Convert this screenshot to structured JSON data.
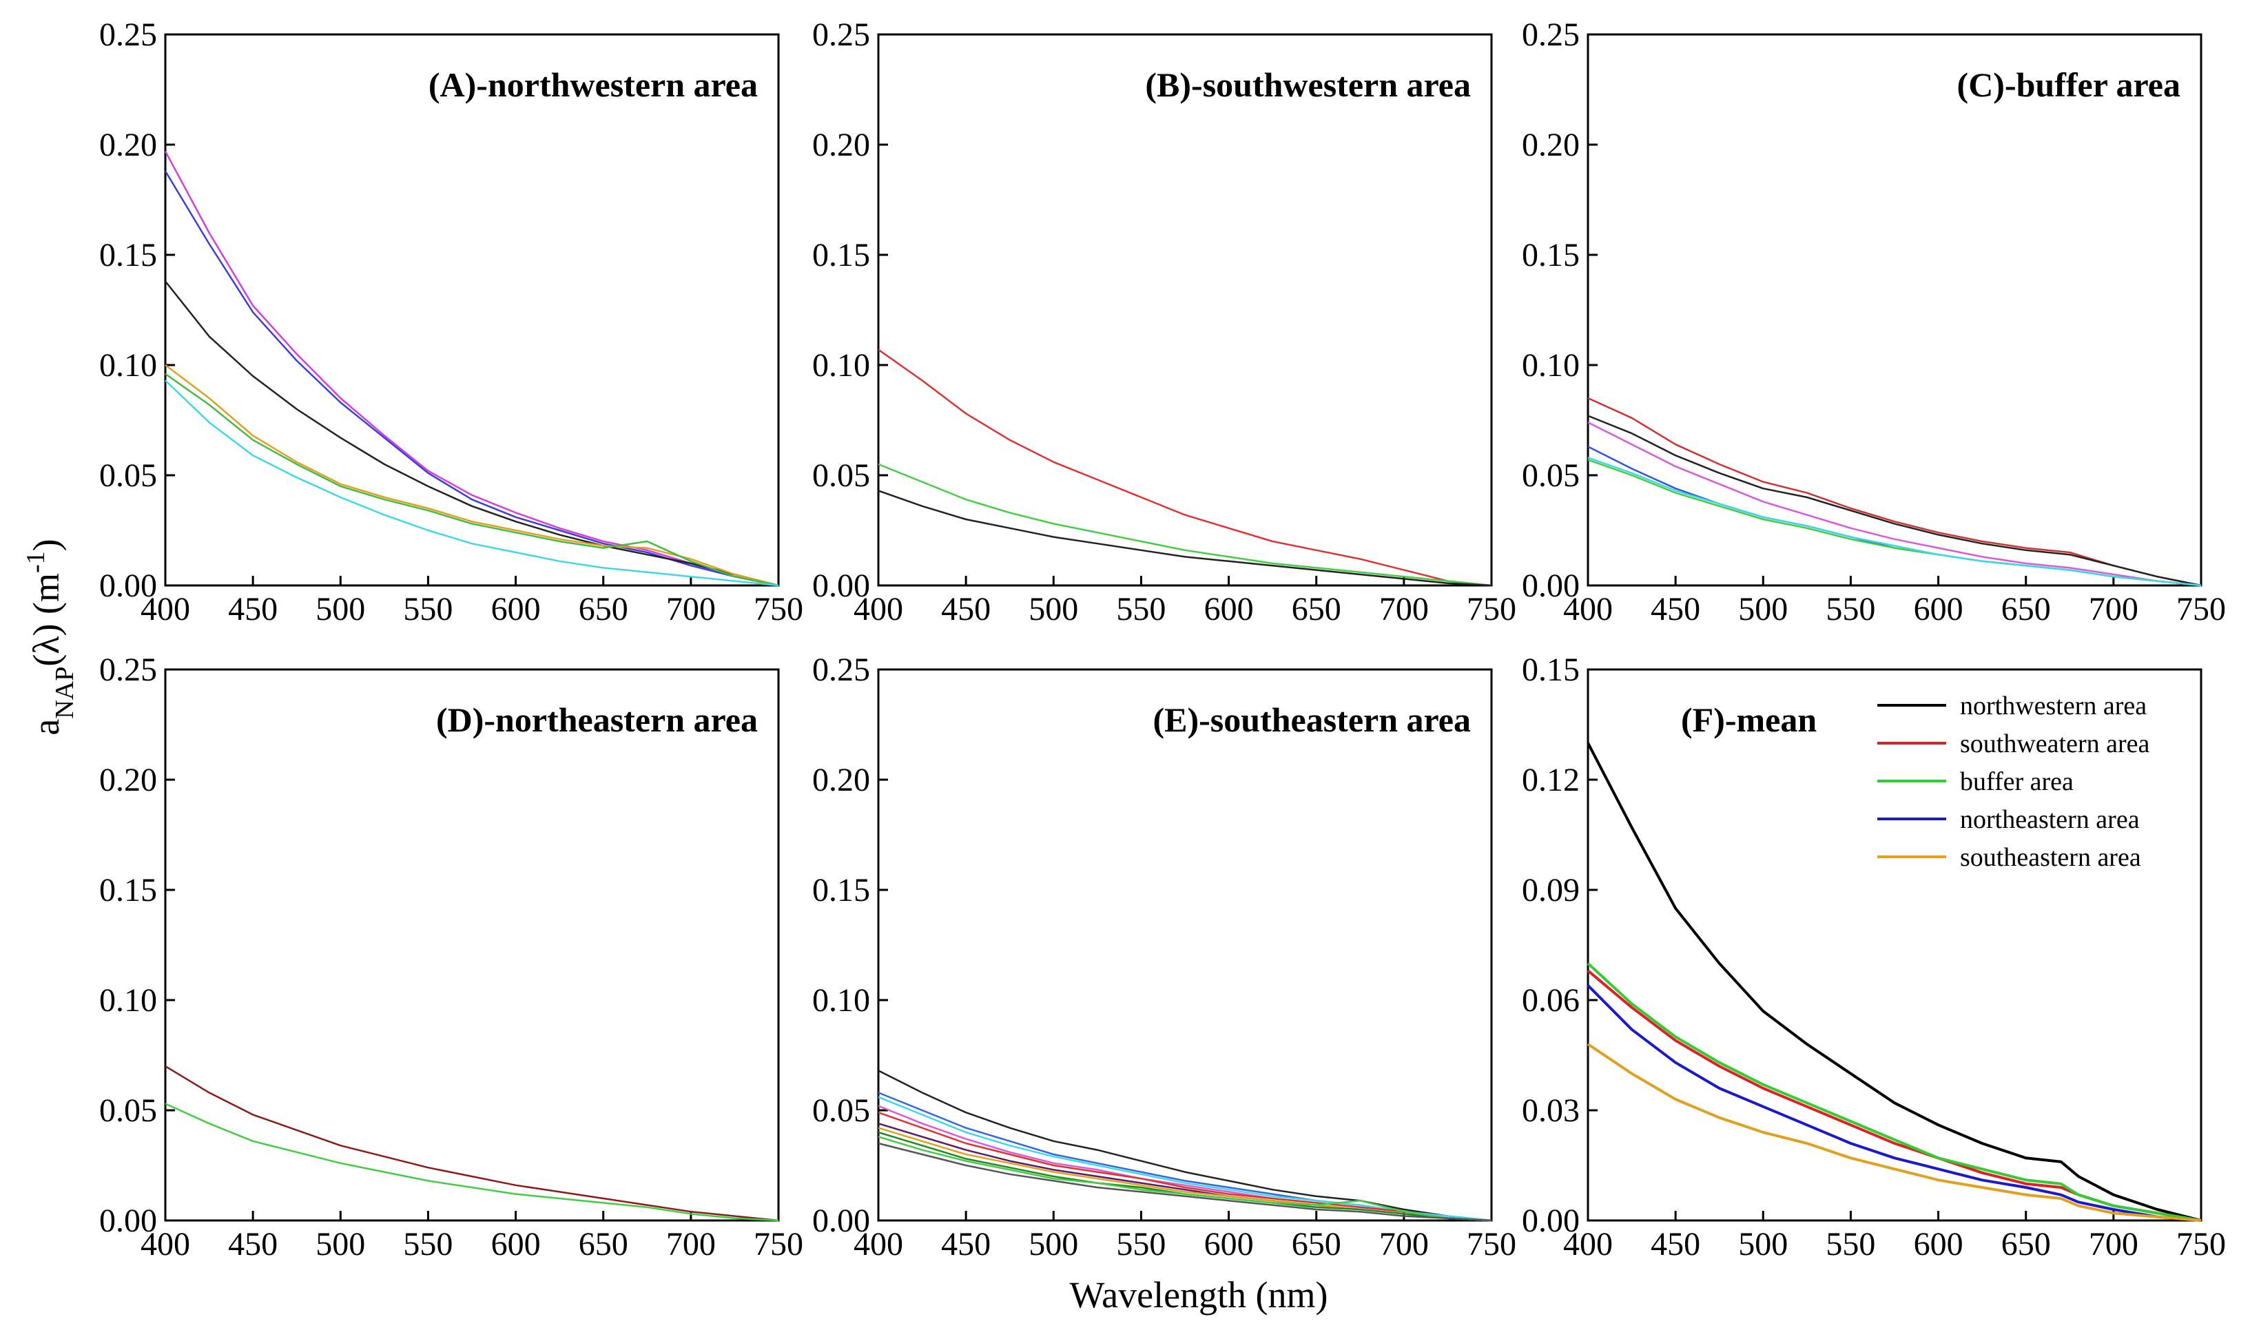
{
  "figure": {
    "xlabel": "Wavelength (nm)",
    "ylabel_main": "a",
    "ylabel_sub": "NAP",
    "ylabel_mid": "(λ) (m",
    "ylabel_sup": "-1",
    "ylabel_end": ")"
  },
  "chart_data": [
    {
      "type": "line",
      "title": "(A)-northwestern area",
      "xlim": [
        400,
        750
      ],
      "ylim": [
        0,
        0.25
      ],
      "xticks": [
        "400",
        "450",
        "500",
        "550",
        "600",
        "650",
        "700",
        "750"
      ],
      "yticks": [
        "0.00",
        "0.05",
        "0.10",
        "0.15",
        "0.20",
        "0.25"
      ],
      "x": [
        400,
        425,
        450,
        475,
        500,
        525,
        550,
        575,
        600,
        625,
        650,
        675,
        700,
        725,
        750
      ],
      "series": [
        {
          "name": "s1",
          "color": "#d63fd6",
          "values": [
            0.197,
            0.16,
            0.127,
            0.105,
            0.085,
            0.068,
            0.052,
            0.041,
            0.033,
            0.026,
            0.02,
            0.016,
            0.01,
            0.004,
            0.0
          ]
        },
        {
          "name": "s2",
          "color": "#3d3ddc",
          "values": [
            0.188,
            0.155,
            0.124,
            0.102,
            0.083,
            0.067,
            0.051,
            0.039,
            0.031,
            0.025,
            0.019,
            0.015,
            0.009,
            0.004,
            0.0
          ]
        },
        {
          "name": "s3",
          "color": "#222222",
          "values": [
            0.138,
            0.113,
            0.095,
            0.08,
            0.067,
            0.055,
            0.045,
            0.036,
            0.029,
            0.023,
            0.018,
            0.014,
            0.01,
            0.005,
            0.0
          ]
        },
        {
          "name": "s4",
          "color": "#e0a020",
          "values": [
            0.1,
            0.085,
            0.068,
            0.056,
            0.046,
            0.04,
            0.035,
            0.029,
            0.025,
            0.021,
            0.018,
            0.017,
            0.012,
            0.005,
            0.0
          ]
        },
        {
          "name": "s5",
          "color": "#44bb44",
          "values": [
            0.096,
            0.082,
            0.066,
            0.055,
            0.045,
            0.039,
            0.034,
            0.028,
            0.024,
            0.02,
            0.017,
            0.02,
            0.011,
            0.004,
            0.0
          ]
        },
        {
          "name": "s6",
          "color": "#40d8e8",
          "values": [
            0.093,
            0.074,
            0.059,
            0.049,
            0.04,
            0.032,
            0.025,
            0.019,
            0.015,
            0.011,
            0.008,
            0.006,
            0.004,
            0.002,
            0.0
          ]
        }
      ]
    },
    {
      "type": "line",
      "title": "(B)-southwestern area",
      "xlim": [
        400,
        750
      ],
      "ylim": [
        0,
        0.25
      ],
      "xticks": [
        "400",
        "450",
        "500",
        "550",
        "600",
        "650",
        "700",
        "750"
      ],
      "yticks": [
        "0.00",
        "0.05",
        "0.10",
        "0.15",
        "0.20",
        "0.25"
      ],
      "x": [
        400,
        425,
        450,
        475,
        500,
        525,
        550,
        575,
        600,
        625,
        650,
        675,
        700,
        725,
        750
      ],
      "series": [
        {
          "name": "s1",
          "color": "#dd3333",
          "values": [
            0.107,
            0.093,
            0.078,
            0.066,
            0.056,
            0.048,
            0.04,
            0.032,
            0.026,
            0.02,
            0.016,
            0.012,
            0.007,
            0.002,
            0.0
          ]
        },
        {
          "name": "s2",
          "color": "#44cc44",
          "values": [
            0.055,
            0.047,
            0.039,
            0.033,
            0.028,
            0.024,
            0.02,
            0.016,
            0.013,
            0.01,
            0.008,
            0.006,
            0.004,
            0.002,
            0.0
          ]
        },
        {
          "name": "s3",
          "color": "#222222",
          "values": [
            0.043,
            0.036,
            0.03,
            0.026,
            0.022,
            0.019,
            0.016,
            0.013,
            0.011,
            0.009,
            0.007,
            0.005,
            0.003,
            0.001,
            0.0
          ]
        }
      ]
    },
    {
      "type": "line",
      "title": "(C)-buffer area",
      "xlim": [
        400,
        750
      ],
      "ylim": [
        0,
        0.25
      ],
      "xticks": [
        "400",
        "450",
        "500",
        "550",
        "600",
        "650",
        "700",
        "750"
      ],
      "yticks": [
        "0.00",
        "0.05",
        "0.10",
        "0.15",
        "0.20",
        "0.25"
      ],
      "x": [
        400,
        425,
        450,
        475,
        500,
        525,
        550,
        575,
        600,
        625,
        650,
        675,
        700,
        725,
        750
      ],
      "series": [
        {
          "name": "s1",
          "color": "#cc3333",
          "values": [
            0.085,
            0.076,
            0.064,
            0.055,
            0.047,
            0.042,
            0.035,
            0.029,
            0.024,
            0.02,
            0.017,
            0.015,
            0.009,
            0.004,
            0.0
          ]
        },
        {
          "name": "s2",
          "color": "#222222",
          "values": [
            0.077,
            0.069,
            0.059,
            0.051,
            0.044,
            0.04,
            0.034,
            0.028,
            0.023,
            0.019,
            0.016,
            0.014,
            0.009,
            0.004,
            0.0
          ]
        },
        {
          "name": "s3",
          "color": "#d85ad8",
          "values": [
            0.074,
            0.064,
            0.054,
            0.046,
            0.038,
            0.032,
            0.026,
            0.021,
            0.017,
            0.013,
            0.01,
            0.008,
            0.005,
            0.002,
            0.0
          ]
        },
        {
          "name": "s4",
          "color": "#3355dd",
          "values": [
            0.063,
            0.053,
            0.044,
            0.037,
            0.031,
            0.027,
            0.022,
            0.017,
            0.014,
            0.011,
            0.009,
            0.007,
            0.004,
            0.002,
            0.0
          ]
        },
        {
          "name": "s5",
          "color": "#44cc44",
          "values": [
            0.057,
            0.05,
            0.042,
            0.036,
            0.03,
            0.026,
            0.021,
            0.017,
            0.014,
            0.011,
            0.009,
            0.007,
            0.004,
            0.002,
            0.0
          ]
        },
        {
          "name": "s6",
          "color": "#40d8e8",
          "values": [
            0.058,
            0.051,
            0.043,
            0.037,
            0.031,
            0.027,
            0.022,
            0.018,
            0.014,
            0.011,
            0.009,
            0.007,
            0.004,
            0.002,
            0.0
          ]
        }
      ]
    },
    {
      "type": "line",
      "title": "(D)-northeastern area",
      "xlim": [
        400,
        750
      ],
      "ylim": [
        0,
        0.25
      ],
      "xticks": [
        "400",
        "450",
        "500",
        "550",
        "600",
        "650",
        "700",
        "750"
      ],
      "yticks": [
        "0.00",
        "0.05",
        "0.10",
        "0.15",
        "0.20",
        "0.25"
      ],
      "x": [
        400,
        425,
        450,
        475,
        500,
        525,
        550,
        575,
        600,
        625,
        650,
        675,
        700,
        725,
        750
      ],
      "series": [
        {
          "name": "s1",
          "color": "#8b1a1a",
          "values": [
            0.07,
            0.058,
            0.048,
            0.041,
            0.034,
            0.029,
            0.024,
            0.02,
            0.016,
            0.013,
            0.01,
            0.007,
            0.004,
            0.002,
            0.0
          ]
        },
        {
          "name": "s2",
          "color": "#44cc44",
          "values": [
            0.053,
            0.044,
            0.036,
            0.031,
            0.026,
            0.022,
            0.018,
            0.015,
            0.012,
            0.01,
            0.008,
            0.006,
            0.003,
            0.001,
            0.0
          ]
        }
      ]
    },
    {
      "type": "line",
      "title": "(E)-southeastern area",
      "xlim": [
        400,
        750
      ],
      "ylim": [
        0,
        0.25
      ],
      "xticks": [
        "400",
        "450",
        "500",
        "550",
        "600",
        "650",
        "700",
        "750"
      ],
      "yticks": [
        "0.00",
        "0.05",
        "0.10",
        "0.15",
        "0.20",
        "0.25"
      ],
      "x": [
        400,
        425,
        450,
        475,
        500,
        525,
        550,
        575,
        600,
        625,
        650,
        675,
        700,
        725,
        750
      ],
      "series": [
        {
          "name": "s1",
          "color": "#222222",
          "values": [
            0.068,
            0.058,
            0.049,
            0.042,
            0.036,
            0.032,
            0.027,
            0.022,
            0.018,
            0.014,
            0.011,
            0.009,
            0.005,
            0.002,
            0.0
          ]
        },
        {
          "name": "s2",
          "color": "#3366dd",
          "values": [
            0.058,
            0.05,
            0.042,
            0.036,
            0.03,
            0.026,
            0.022,
            0.018,
            0.015,
            0.012,
            0.009,
            0.007,
            0.004,
            0.002,
            0.0
          ]
        },
        {
          "name": "s3",
          "color": "#40d8e8",
          "values": [
            0.056,
            0.048,
            0.04,
            0.034,
            0.029,
            0.025,
            0.021,
            0.017,
            0.014,
            0.011,
            0.009,
            0.007,
            0.004,
            0.002,
            0.0
          ]
        },
        {
          "name": "s4",
          "color": "#d85ad8",
          "values": [
            0.052,
            0.044,
            0.037,
            0.031,
            0.026,
            0.023,
            0.019,
            0.016,
            0.013,
            0.01,
            0.008,
            0.006,
            0.004,
            0.001,
            0.0
          ]
        },
        {
          "name": "s5",
          "color": "#dd3333",
          "values": [
            0.049,
            0.042,
            0.035,
            0.03,
            0.025,
            0.022,
            0.019,
            0.015,
            0.012,
            0.01,
            0.008,
            0.006,
            0.004,
            0.001,
            0.0
          ]
        },
        {
          "name": "s6",
          "color": "#5a1a6a",
          "values": [
            0.044,
            0.038,
            0.032,
            0.027,
            0.023,
            0.02,
            0.017,
            0.014,
            0.011,
            0.009,
            0.007,
            0.005,
            0.003,
            0.001,
            0.0
          ]
        },
        {
          "name": "s7",
          "color": "#e0a020",
          "values": [
            0.042,
            0.036,
            0.03,
            0.026,
            0.022,
            0.019,
            0.016,
            0.013,
            0.011,
            0.009,
            0.007,
            0.005,
            0.003,
            0.001,
            0.0
          ]
        },
        {
          "name": "s8",
          "color": "#228822",
          "values": [
            0.04,
            0.034,
            0.028,
            0.024,
            0.02,
            0.017,
            0.015,
            0.012,
            0.01,
            0.008,
            0.006,
            0.005,
            0.003,
            0.001,
            0.0
          ]
        },
        {
          "name": "s9",
          "color": "#44cc44",
          "values": [
            0.038,
            0.032,
            0.027,
            0.023,
            0.019,
            0.017,
            0.014,
            0.012,
            0.01,
            0.008,
            0.007,
            0.009,
            0.004,
            0.001,
            0.0
          ]
        },
        {
          "name": "s10",
          "color": "#555555",
          "values": [
            0.035,
            0.03,
            0.025,
            0.021,
            0.018,
            0.015,
            0.013,
            0.011,
            0.009,
            0.007,
            0.005,
            0.004,
            0.002,
            0.001,
            0.0
          ]
        }
      ]
    },
    {
      "type": "line",
      "title": "(F)-mean",
      "xlim": [
        400,
        750
      ],
      "ylim": [
        0,
        0.15
      ],
      "xticks": [
        "400",
        "450",
        "500",
        "550",
        "600",
        "650",
        "700",
        "750"
      ],
      "yticks": [
        "0.00",
        "0.03",
        "0.06",
        "0.09",
        "0.12",
        "0.15"
      ],
      "x": [
        400,
        425,
        450,
        475,
        500,
        525,
        550,
        575,
        600,
        625,
        650,
        670,
        680,
        700,
        725,
        750
      ],
      "legend_position": "top-right",
      "series": [
        {
          "name": "northwestern area",
          "color": "#000000",
          "values": [
            0.13,
            0.107,
            0.085,
            0.07,
            0.057,
            0.048,
            0.04,
            0.032,
            0.026,
            0.021,
            0.017,
            0.016,
            0.012,
            0.007,
            0.003,
            0.0
          ]
        },
        {
          "name": "southweatern area",
          "color": "#dd2222",
          "values": [
            0.068,
            0.058,
            0.049,
            0.042,
            0.036,
            0.031,
            0.026,
            0.021,
            0.017,
            0.013,
            0.01,
            0.009,
            0.007,
            0.004,
            0.002,
            0.0
          ]
        },
        {
          "name": "buffer area",
          "color": "#33cc33",
          "values": [
            0.07,
            0.059,
            0.05,
            0.043,
            0.037,
            0.032,
            0.027,
            0.022,
            0.017,
            0.014,
            0.011,
            0.01,
            0.007,
            0.004,
            0.002,
            0.0
          ]
        },
        {
          "name": "northeastern area",
          "color": "#1a1acc",
          "values": [
            0.064,
            0.052,
            0.043,
            0.036,
            0.031,
            0.026,
            0.021,
            0.017,
            0.014,
            0.011,
            0.009,
            0.007,
            0.005,
            0.003,
            0.001,
            0.0
          ]
        },
        {
          "name": "southeastern area",
          "color": "#e0a020",
          "values": [
            0.048,
            0.04,
            0.033,
            0.028,
            0.024,
            0.021,
            0.017,
            0.014,
            0.011,
            0.009,
            0.007,
            0.006,
            0.004,
            0.002,
            0.001,
            0.0
          ]
        }
      ]
    }
  ]
}
